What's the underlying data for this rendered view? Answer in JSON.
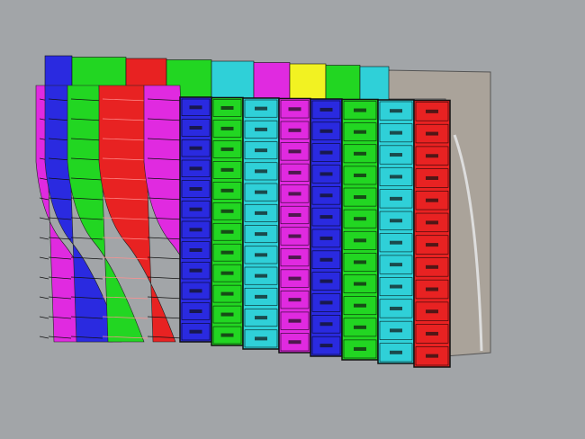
{
  "viewport": {
    "background": "#a2a5a8",
    "panel_colors": {
      "blue": "#2a2ae0",
      "green": "#22d622",
      "cyan": "#2fd0d8",
      "magenta": "#e02ae0",
      "red": "#e82222",
      "yellow": "#f2f222",
      "gray": "#aaa39a"
    },
    "back_row": [
      "blue",
      "green",
      "red",
      "green",
      "cyan",
      "magenta",
      "yellow",
      "green",
      "cyan"
    ],
    "left_strips": [
      "magenta",
      "blue",
      "green",
      "red",
      "magenta"
    ],
    "front_columns": [
      "blue",
      "green",
      "cyan",
      "magenta",
      "blue",
      "green",
      "cyan",
      "red"
    ]
  }
}
